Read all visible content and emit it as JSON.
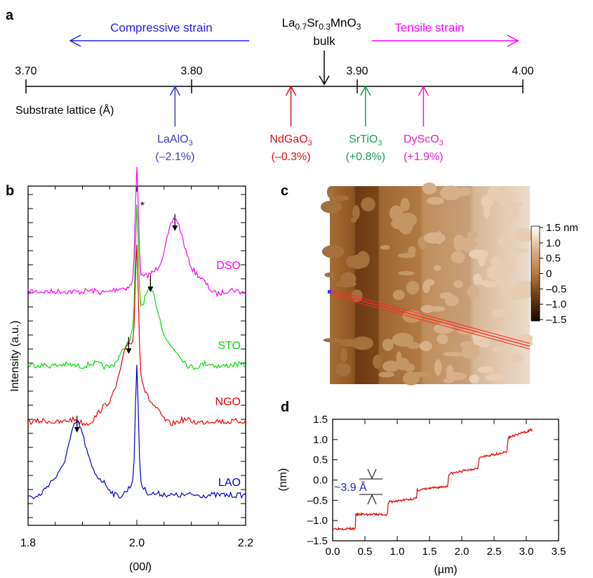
{
  "panels": {
    "a": {
      "label": "a",
      "compressive_label": "Compressive strain",
      "tensile_label": "Tensile strain",
      "bulk_name": "La0.7Sr0.3MnO3",
      "bulk_word": "bulk",
      "bulk_value": 3.876,
      "axis_label": "Substrate lattice (Å)",
      "ticks": [
        "3.70",
        "3.80",
        "3.90",
        "4.00"
      ],
      "range": [
        3.7,
        4.0
      ],
      "colors": {
        "compressive": "#2020e0",
        "tensile": "#ff00ff"
      },
      "substrates": [
        {
          "name": "LaAlO3",
          "strain": "(–2.1%)",
          "value": 3.79,
          "color": "#3a3acc"
        },
        {
          "name": "NdGaO3",
          "strain": "(–0.3%)",
          "value": 3.86,
          "color": "#e01010"
        },
        {
          "name": "SrTiO3",
          "strain": "(+0.8%)",
          "value": 3.905,
          "color": "#18a050"
        },
        {
          "name": "DyScO3",
          "strain": "(+1.9%)",
          "value": 3.94,
          "color": "#e020d0"
        }
      ]
    },
    "b": {
      "label": "b",
      "ylabel": "Intensity (a.u.)",
      "xlabel": "(00l)",
      "star": "*",
      "xticks": [
        "1.8",
        "2.0",
        "2.2"
      ]
    },
    "c": {
      "label": "c",
      "colorbar_ticks": [
        "1.5 nm",
        "1.0",
        "0.5",
        "0",
        "–0.5",
        "–1.0",
        "–1.5"
      ]
    },
    "d": {
      "label": "d",
      "ylabel": "(nm)",
      "xlabel": "(µm)",
      "annotation": "~3.9 Å",
      "yticks": [
        "1.5",
        "1.0",
        "0.5",
        "0.0",
        "–0.5",
        "–1.0",
        "–1.5"
      ],
      "xticks": [
        "0.0",
        "0.5",
        "1.0",
        "1.5",
        "2.0",
        "2.5",
        "3.0",
        "3.5"
      ]
    }
  },
  "chart_data": [
    {
      "type": "line",
      "xlabel": "(00l)",
      "ylabel": "Intensity (a.u.)",
      "xlim": [
        1.8,
        2.2
      ],
      "substrate_peak": 2.0,
      "series": [
        {
          "name": "DSO",
          "color": "#ff00ff",
          "film_peak": 2.07
        },
        {
          "name": "STO",
          "color": "#00dd00",
          "film_peak": 2.025
        },
        {
          "name": "NGO",
          "color": "#ee0000",
          "film_peak": 1.985
        },
        {
          "name": "LAO",
          "color": "#0000cc",
          "film_peak": 1.89
        }
      ]
    },
    {
      "type": "line",
      "xlabel": "(µm)",
      "ylabel": "(nm)",
      "xlim": [
        0.0,
        3.5
      ],
      "ylim": [
        -1.5,
        1.5
      ],
      "series": [
        {
          "color": "#dd0000",
          "x": [
            0.0,
            0.35,
            0.36,
            0.85,
            0.86,
            1.3,
            1.31,
            1.78,
            1.8,
            2.25,
            2.27,
            2.7,
            2.72,
            3.1
          ],
          "y": [
            -1.2,
            -1.2,
            -0.85,
            -0.85,
            -0.55,
            -0.45,
            -0.25,
            -0.15,
            0.15,
            0.3,
            0.55,
            0.7,
            1.05,
            1.25
          ]
        }
      ]
    }
  ]
}
